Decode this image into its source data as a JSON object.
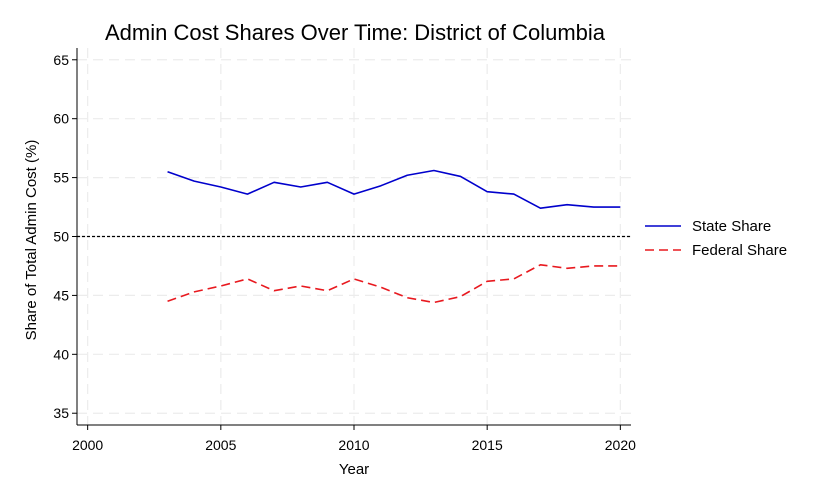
{
  "chart_data": {
    "type": "line",
    "title": "Admin Cost Shares Over Time: District of Columbia",
    "xlabel": "Year",
    "ylabel": "Share of Total Admin Cost (%)",
    "xlim": [
      1999.6,
      2020.4
    ],
    "ylim": [
      34,
      66
    ],
    "xticks": [
      2000,
      2005,
      2010,
      2015,
      2020
    ],
    "yticks": [
      35,
      40,
      45,
      50,
      55,
      60,
      65
    ],
    "grid": true,
    "legend_position": "right",
    "reference_line": {
      "y": 50,
      "style": "dotted",
      "color": "#000000"
    },
    "x": [
      2003,
      2004,
      2005,
      2006,
      2007,
      2008,
      2009,
      2010,
      2011,
      2012,
      2013,
      2014,
      2015,
      2016,
      2017,
      2018,
      2019,
      2020
    ],
    "series": [
      {
        "name": "State Share",
        "color": "#0000cc",
        "dash": "solid",
        "values": [
          55.5,
          54.7,
          54.2,
          53.6,
          54.6,
          54.2,
          54.6,
          53.6,
          54.3,
          55.2,
          55.6,
          55.1,
          53.8,
          53.6,
          52.4,
          52.7,
          52.5,
          52.5
        ]
      },
      {
        "name": "Federal Share",
        "color": "#e8191f",
        "dash": "dashed",
        "values": [
          44.5,
          45.3,
          45.8,
          46.4,
          45.4,
          45.8,
          45.4,
          46.4,
          45.7,
          44.8,
          44.4,
          44.9,
          46.2,
          46.4,
          47.6,
          47.3,
          47.5,
          47.5
        ]
      }
    ]
  }
}
